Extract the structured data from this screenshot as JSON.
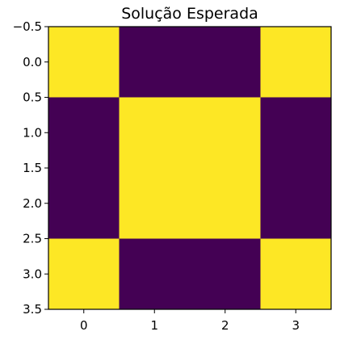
{
  "chart_data": {
    "type": "heatmap",
    "title": "Solução Esperada",
    "matrix": [
      [
        1,
        0,
        0,
        1
      ],
      [
        0,
        1,
        1,
        0
      ],
      [
        0,
        1,
        1,
        0
      ],
      [
        1,
        0,
        0,
        1
      ]
    ],
    "colormap": "viridis",
    "colors": {
      "low": "#440154",
      "high": "#fde725"
    },
    "xlim": [
      -0.5,
      3.5
    ],
    "ylim": [
      3.5,
      -0.5
    ],
    "xticks": [
      0,
      1,
      2,
      3
    ],
    "xtick_labels": [
      "0",
      "1",
      "2",
      "3"
    ],
    "yticks": [
      -0.5,
      0.0,
      0.5,
      1.0,
      1.5,
      2.0,
      2.5,
      3.0,
      3.5
    ],
    "ytick_labels": [
      "−0.5",
      "0.0",
      "0.5",
      "1.0",
      "1.5",
      "2.0",
      "2.5",
      "3.0",
      "3.5"
    ],
    "grid": false
  }
}
